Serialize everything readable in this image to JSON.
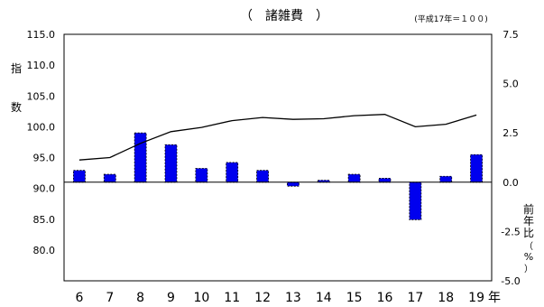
{
  "chart_data": {
    "type": "line",
    "title": "（　諸雑費　）",
    "base_note": "(平成17年＝１００)",
    "ylabel_left": [
      "指",
      "数"
    ],
    "ylabel_right": [
      "前",
      "年",
      "比",
      "（",
      "%",
      "）"
    ],
    "x_unit": "年",
    "categories": [
      "6",
      "7",
      "8",
      "9",
      "10",
      "11",
      "12",
      "13",
      "14",
      "15",
      "16",
      "17",
      "18",
      "19"
    ],
    "index_axis": {
      "ylim": [
        75,
        115
      ],
      "tick_values": [
        80,
        85,
        90,
        95,
        100,
        105,
        110,
        115
      ],
      "tick_labels": [
        "80.0",
        "85.0",
        "90.0",
        "95.0",
        "100.0",
        "105.0",
        "110.0",
        "115.0"
      ]
    },
    "change_axis": {
      "ylim": [
        -5,
        7.5
      ],
      "tick_values": [
        -5,
        -2.5,
        0,
        2.5,
        5,
        7.5
      ],
      "tick_labels": [
        "-5.0",
        "-2.5",
        "0.0",
        "2.5",
        "5.0",
        "7.5"
      ]
    },
    "series": [
      {
        "kind": "line",
        "axis": "index",
        "values": [
          94.6,
          95.0,
          97.3,
          99.2,
          99.9,
          101.0,
          101.5,
          101.2,
          101.3,
          101.8,
          102.0,
          100.0,
          100.4,
          101.9
        ]
      },
      {
        "kind": "bar",
        "axis": "change",
        "values": [
          0.6,
          0.4,
          2.5,
          1.9,
          0.7,
          1.0,
          0.6,
          -0.2,
          0.1,
          0.4,
          0.2,
          -1.9,
          0.3,
          1.4
        ]
      }
    ],
    "colors": {
      "bar": "#0000ee",
      "line": "#000000",
      "axis": "#000000"
    },
    "grid": false
  }
}
